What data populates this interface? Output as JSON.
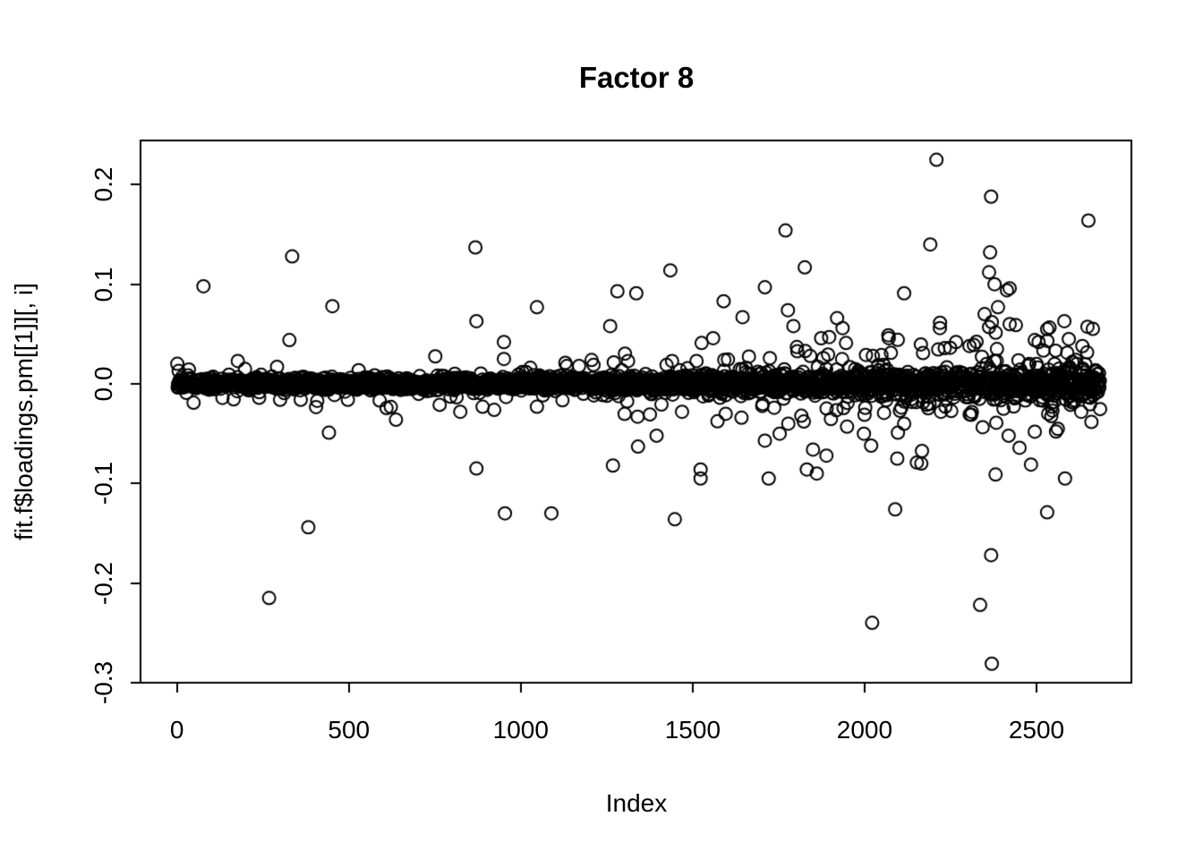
{
  "page": {
    "foreground_color": "#000000",
    "background_color": "#ffffff"
  },
  "chart_data": {
    "type": "scatter",
    "title": "Factor 8",
    "xlabel": "Index",
    "ylabel": "fit.f$loadings.pm[[1]][, i]",
    "grid": false,
    "legend": null,
    "xlim": [
      -106,
      2776
    ],
    "ylim": [
      -0.3001,
      0.2444
    ],
    "x_ticks": {
      "values": [
        0,
        500,
        1000,
        1500,
        2000,
        2500
      ],
      "labels": [
        "0",
        "500",
        "1000",
        "1500",
        "2000",
        "2500"
      ]
    },
    "y_ticks": {
      "values": [
        -0.3,
        -0.2,
        -0.1,
        0.0,
        0.1,
        0.2
      ],
      "labels": [
        "-0.3",
        "-0.2",
        "-0.1",
        "0.0",
        "0.1",
        "0.2"
      ]
    },
    "n_points": 2685,
    "marker": {
      "shape": "open-circle",
      "radius_px": 7,
      "stroke_px": 2,
      "color": "#000000"
    },
    "band_model": {
      "count": 2555,
      "x_min": 1,
      "x_max": 2685,
      "core_sd_base": 0.0028,
      "core_sd_growth": 0.0052,
      "core_sd_power": 2,
      "core_y_max": 0.02,
      "tail_prob_base": 0.015,
      "tail_prob_growth": 0.13,
      "tail_prob_power": 2.5,
      "tail_y_base": 0.011,
      "tail_y_scale": 0.013,
      "tail_y_growth_base": 0.3,
      "tail_y_growth": 1.7,
      "tail_y_max": 0.068,
      "seed": 7
    },
    "outliers": [
      [
        5,
        0.013
      ],
      [
        77,
        0.098
      ],
      [
        177,
        0.023
      ],
      [
        198,
        0.015
      ],
      [
        239,
        -0.014
      ],
      [
        268,
        -0.215
      ],
      [
        300,
        -0.016
      ],
      [
        327,
        0.044
      ],
      [
        335,
        0.128
      ],
      [
        360,
        -0.016
      ],
      [
        382,
        -0.144
      ],
      [
        408,
        -0.017
      ],
      [
        442,
        -0.049
      ],
      [
        452,
        0.078
      ],
      [
        637,
        -0.036
      ],
      [
        764,
        -0.021
      ],
      [
        824,
        -0.028
      ],
      [
        868,
        0.137
      ],
      [
        871,
        0.063
      ],
      [
        871,
        -0.085
      ],
      [
        889,
        -0.023
      ],
      [
        951,
        0.042
      ],
      [
        951,
        0.025
      ],
      [
        954,
        -0.13
      ],
      [
        1047,
        0.077
      ],
      [
        1047,
        -0.023
      ],
      [
        1089,
        -0.13
      ],
      [
        1206,
        0.024
      ],
      [
        1260,
        0.058
      ],
      [
        1268,
        -0.082
      ],
      [
        1281,
        0.093
      ],
      [
        1312,
        0.023
      ],
      [
        1336,
        0.091
      ],
      [
        1341,
        -0.063
      ],
      [
        1395,
        -0.052
      ],
      [
        1424,
        0.019
      ],
      [
        1435,
        0.114
      ],
      [
        1440,
        0.023
      ],
      [
        1448,
        -0.136
      ],
      [
        1469,
        -0.028
      ],
      [
        1523,
        -0.086
      ],
      [
        1523,
        -0.095
      ],
      [
        1526,
        0.041
      ],
      [
        1590,
        0.083
      ],
      [
        1596,
        -0.03
      ],
      [
        1642,
        -0.034
      ],
      [
        1645,
        0.067
      ],
      [
        1710,
        0.097
      ],
      [
        1710,
        -0.057
      ],
      [
        1721,
        -0.095
      ],
      [
        1737,
        -0.024
      ],
      [
        1753,
        -0.05
      ],
      [
        1770,
        0.154
      ],
      [
        1777,
        0.074
      ],
      [
        1793,
        0.058
      ],
      [
        1803,
        0.037
      ],
      [
        1816,
        -0.032
      ],
      [
        1826,
        0.117
      ],
      [
        1832,
        -0.086
      ],
      [
        1842,
        0.028
      ],
      [
        1850,
        -0.066
      ],
      [
        1861,
        -0.09
      ],
      [
        1889,
        -0.072
      ],
      [
        1897,
        0.047
      ],
      [
        1920,
        0.066
      ],
      [
        1936,
        0.056
      ],
      [
        1946,
        0.041
      ],
      [
        1949,
        -0.043
      ],
      [
        1998,
        -0.05
      ],
      [
        2019,
        -0.062
      ],
      [
        2022,
        -0.24
      ],
      [
        2024,
        0.028
      ],
      [
        2089,
        -0.126
      ],
      [
        2095,
        -0.075
      ],
      [
        2097,
        -0.049
      ],
      [
        2115,
        0.091
      ],
      [
        2115,
        -0.04
      ],
      [
        2152,
        -0.079
      ],
      [
        2165,
        -0.08
      ],
      [
        2170,
        0.031
      ],
      [
        2170,
        -0.013
      ],
      [
        2181,
        -0.021
      ],
      [
        2191,
        0.14
      ],
      [
        2209,
        0.225
      ],
      [
        2219,
        0.056
      ],
      [
        2222,
        -0.028
      ],
      [
        2235,
        -0.023
      ],
      [
        2266,
        0.042
      ],
      [
        2305,
        0.038
      ],
      [
        2310,
        -0.031
      ],
      [
        2318,
        0.039
      ],
      [
        2336,
        -0.222
      ],
      [
        2349,
        0.07
      ],
      [
        2362,
        0.112
      ],
      [
        2362,
        0.057
      ],
      [
        2365,
        0.132
      ],
      [
        2368,
        0.188
      ],
      [
        2368,
        -0.172
      ],
      [
        2370,
        0.062
      ],
      [
        2370,
        -0.281
      ],
      [
        2378,
        0.1
      ],
      [
        2381,
        -0.091
      ],
      [
        2383,
        -0.039
      ],
      [
        2385,
        0.035
      ],
      [
        2388,
        0.077
      ],
      [
        2404,
        -0.025
      ],
      [
        2414,
        0.094
      ],
      [
        2419,
        -0.052
      ],
      [
        2422,
        0.096
      ],
      [
        2422,
        0.06
      ],
      [
        2440,
        0.059
      ],
      [
        2479,
        0.02
      ],
      [
        2484,
        -0.081
      ],
      [
        2495,
        0.044
      ],
      [
        2495,
        -0.048
      ],
      [
        2506,
        0.042
      ],
      [
        2531,
        0.055
      ],
      [
        2531,
        -0.129
      ],
      [
        2534,
        -0.03
      ],
      [
        2544,
        -0.023
      ],
      [
        2581,
        0.063
      ],
      [
        2583,
        -0.095
      ],
      [
        2594,
        0.045
      ],
      [
        2596,
        0.017
      ],
      [
        2599,
        -0.021
      ],
      [
        2604,
        0.022
      ],
      [
        2617,
        0.02
      ],
      [
        2630,
        -0.028
      ],
      [
        2635,
        0.014
      ],
      [
        2651,
        0.164
      ],
      [
        2656,
        -0.014
      ]
    ]
  }
}
